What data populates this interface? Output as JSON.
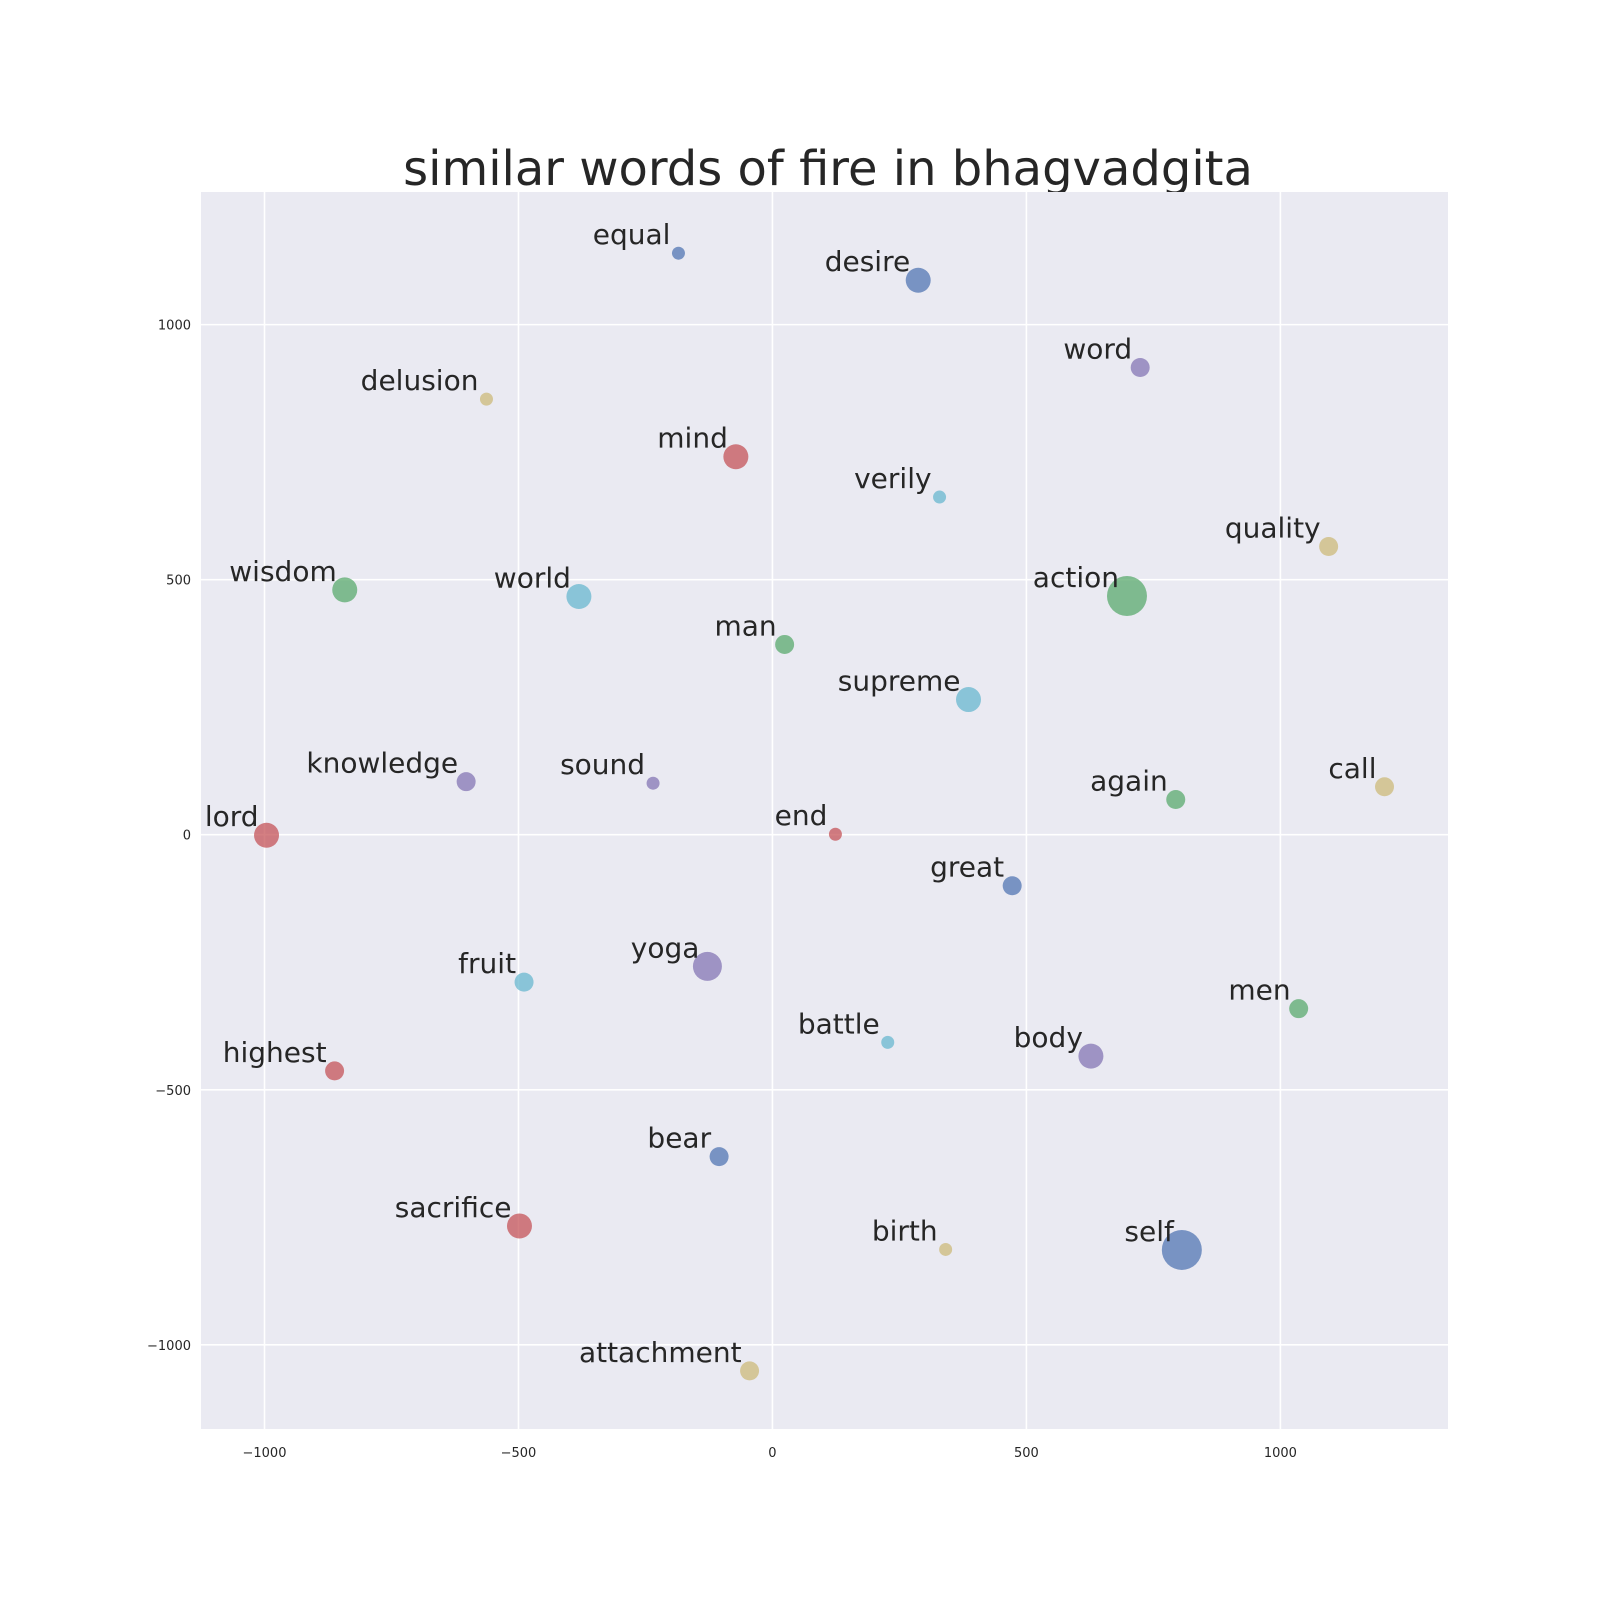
{
  "chart_data": {
    "type": "scatter",
    "title": "similar words of fire in bhagvadgita",
    "xlabel": "",
    "ylabel": "",
    "xlim": [
      -1125,
      1330
    ],
    "ylim": [
      -1165,
      1260
    ],
    "xticks": [
      -1000,
      -500,
      0,
      500,
      1000
    ],
    "yticks": [
      -1000,
      -500,
      0,
      500,
      1000
    ],
    "xtick_labels": [
      "−1000",
      "−500",
      "0",
      "500",
      "1000"
    ],
    "ytick_labels": [
      "−1000",
      "−500",
      "0",
      "500",
      "1000"
    ],
    "grid": true,
    "background": "#EAEAF2",
    "colors": {
      "blue": "#4C72B0",
      "green": "#55A868",
      "red": "#C44E52",
      "purple": "#8172B2",
      "yellow": "#CCB974",
      "cyan": "#64B5CD"
    },
    "points": [
      {
        "label": "equal",
        "x": -185,
        "y": 1140,
        "size": 1,
        "color": "blue"
      },
      {
        "label": "desire",
        "x": 287,
        "y": 1087,
        "size": 3,
        "color": "blue"
      },
      {
        "label": "word",
        "x": 724,
        "y": 916,
        "size": 2,
        "color": "purple"
      },
      {
        "label": "delusion",
        "x": -563,
        "y": 854,
        "size": 1,
        "color": "yellow"
      },
      {
        "label": "mind",
        "x": -72,
        "y": 741,
        "size": 3,
        "color": "red"
      },
      {
        "label": "verily",
        "x": 329,
        "y": 662,
        "size": 1,
        "color": "cyan"
      },
      {
        "label": "quality",
        "x": 1095,
        "y": 565,
        "size": 2,
        "color": "yellow"
      },
      {
        "label": "wisdom",
        "x": -842,
        "y": 480,
        "size": 3,
        "color": "green"
      },
      {
        "label": "world",
        "x": -381,
        "y": 467,
        "size": 3,
        "color": "cyan"
      },
      {
        "label": "action",
        "x": 698,
        "y": 468,
        "size": 5,
        "color": "green"
      },
      {
        "label": "man",
        "x": 24,
        "y": 373,
        "size": 2,
        "color": "green"
      },
      {
        "label": "supreme",
        "x": 386,
        "y": 265,
        "size": 3,
        "color": "cyan"
      },
      {
        "label": "knowledge",
        "x": -603,
        "y": 104,
        "size": 2,
        "color": "purple"
      },
      {
        "label": "sound",
        "x": -235,
        "y": 101,
        "size": 1,
        "color": "purple"
      },
      {
        "label": "again",
        "x": 794,
        "y": 69,
        "size": 2,
        "color": "green"
      },
      {
        "label": "call",
        "x": 1205,
        "y": 94,
        "size": 2,
        "color": "yellow"
      },
      {
        "label": "lord",
        "x": -996,
        "y": -1,
        "size": 3,
        "color": "red"
      },
      {
        "label": "end",
        "x": 124,
        "y": 1,
        "size": 1,
        "color": "red"
      },
      {
        "label": "great",
        "x": 472,
        "y": -100,
        "size": 2,
        "color": "blue"
      },
      {
        "label": "fruit",
        "x": -489,
        "y": -289,
        "size": 2,
        "color": "cyan"
      },
      {
        "label": "yoga",
        "x": -128,
        "y": -258,
        "size": 4,
        "color": "purple"
      },
      {
        "label": "men",
        "x": 1036,
        "y": -341,
        "size": 2,
        "color": "green"
      },
      {
        "label": "battle",
        "x": 227,
        "y": -407,
        "size": 1,
        "color": "cyan"
      },
      {
        "label": "body",
        "x": 627,
        "y": -434,
        "size": 3,
        "color": "purple"
      },
      {
        "label": "highest",
        "x": -862,
        "y": -463,
        "size": 2,
        "color": "red"
      },
      {
        "label": "bear",
        "x": -105,
        "y": -631,
        "size": 2,
        "color": "blue"
      },
      {
        "label": "sacrifice",
        "x": -498,
        "y": -767,
        "size": 3,
        "color": "red"
      },
      {
        "label": "birth",
        "x": 341,
        "y": -813,
        "size": 1,
        "color": "yellow"
      },
      {
        "label": "self",
        "x": 806,
        "y": -814,
        "size": 5,
        "color": "blue"
      },
      {
        "label": "attachment",
        "x": -45,
        "y": -1051,
        "size": 2,
        "color": "yellow"
      }
    ]
  }
}
